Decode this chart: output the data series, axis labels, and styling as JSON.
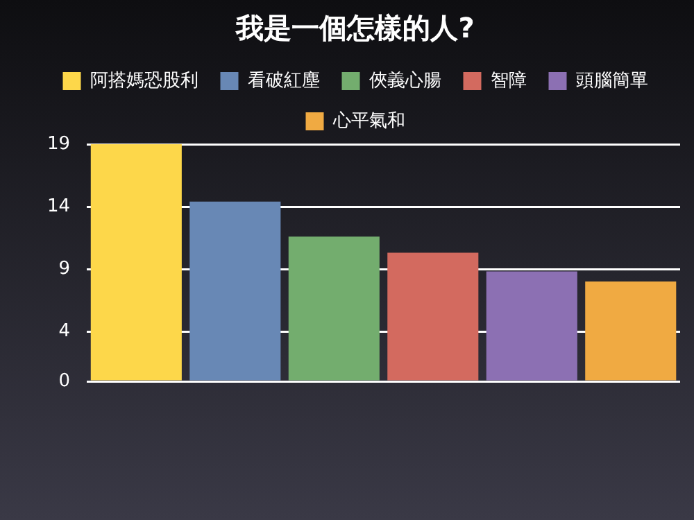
{
  "chart_data": {
    "type": "bar",
    "title": "我是一個怎樣的人?",
    "categories": [
      null
    ],
    "series": [
      {
        "name": "阿搭媽恐股利",
        "color": "#fdd74a",
        "values": [
          19
        ]
      },
      {
        "name": "看破紅塵",
        "color": "#6888b5",
        "values": [
          14.4
        ]
      },
      {
        "name": "俠義心腸",
        "color": "#73ad6e",
        "values": [
          11.6
        ]
      },
      {
        "name": "智障",
        "color": "#d36a5f",
        "values": [
          10.3
        ]
      },
      {
        "name": "頭腦簡單",
        "color": "#8c70b3",
        "values": [
          8.8
        ]
      },
      {
        "name": "心平氣和",
        "color": "#f0aa42",
        "values": [
          8.0
        ]
      }
    ],
    "ylim": [
      0,
      19
    ],
    "yticks": [
      0,
      4,
      9,
      14,
      19
    ],
    "grid": "y",
    "legend": "top"
  }
}
